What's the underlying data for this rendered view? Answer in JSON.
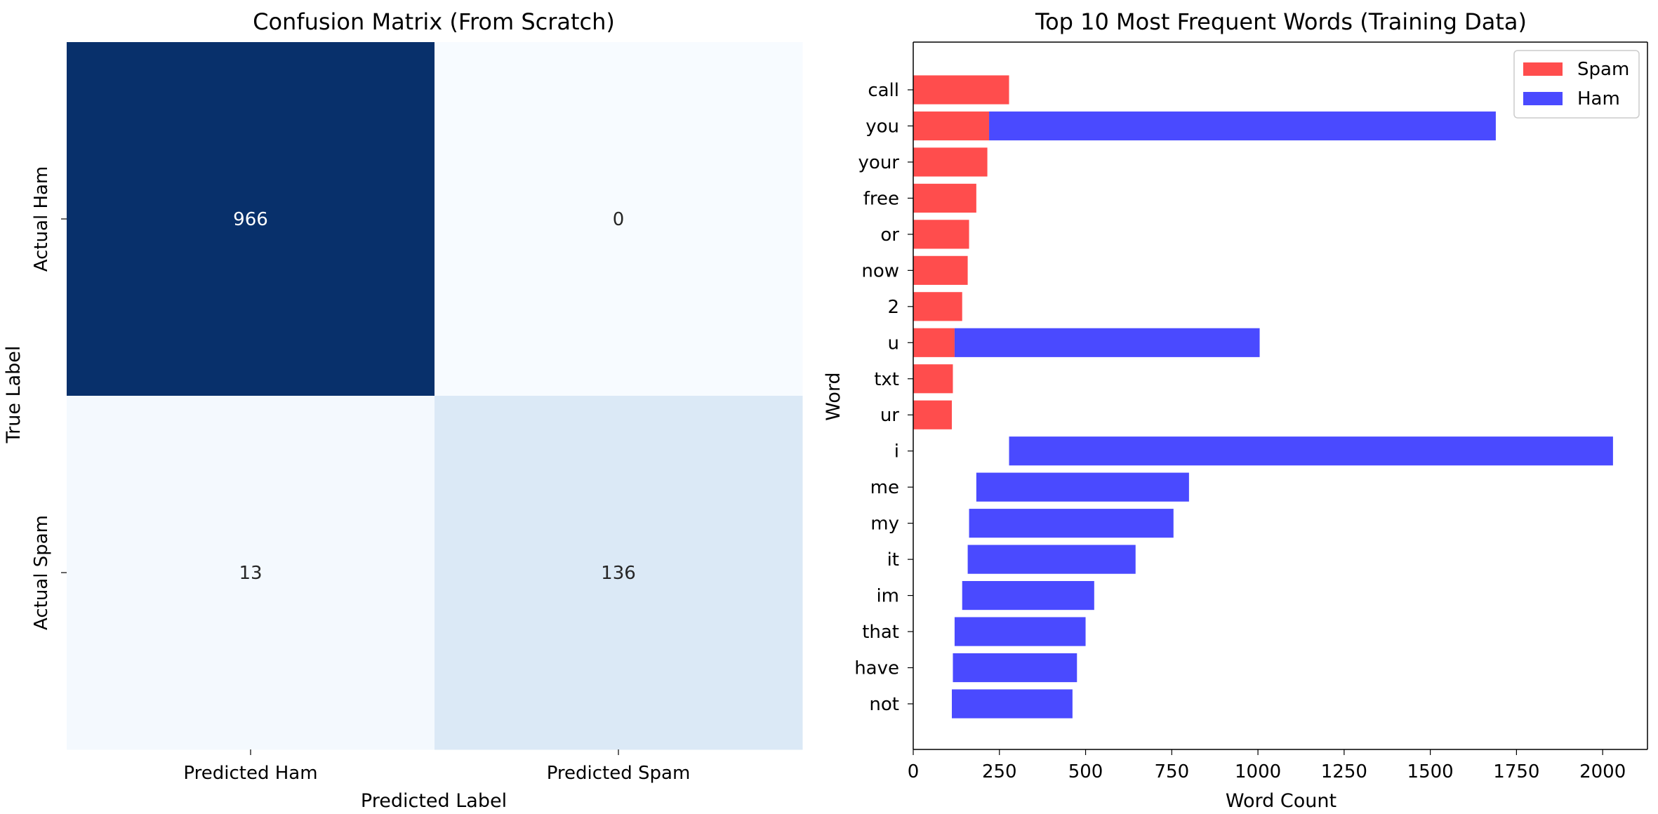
{
  "chart_data": [
    {
      "type": "heatmap",
      "title": "Confusion Matrix (From Scratch)",
      "xlabel": "Predicted Label",
      "ylabel": "True Label",
      "x_categories": [
        "Predicted Ham",
        "Predicted Spam"
      ],
      "y_categories": [
        "Actual Ham",
        "Actual Spam"
      ],
      "values": [
        [
          966,
          0
        ],
        [
          13,
          136
        ]
      ],
      "colormap": "Blues",
      "colorbar": false
    },
    {
      "type": "bar",
      "orientation": "horizontal",
      "title": "Top 10 Most Frequent Words (Training Data)",
      "xlabel": "Word Count",
      "ylabel": "Word",
      "categories": [
        "call",
        "you",
        "your",
        "free",
        "or",
        "now",
        "2",
        "u",
        "txt",
        "ur",
        "i",
        "me",
        "my",
        "it",
        "im",
        "that",
        "have",
        "not"
      ],
      "xlim": [
        0,
        2130
      ],
      "xticks": [
        0,
        250,
        500,
        750,
        1000,
        1250,
        1500,
        1750,
        2000
      ],
      "legend_position": "top-right",
      "grid": false,
      "series": [
        {
          "name": "Spam",
          "color": "#ff4d4d",
          "values": [
            278,
            220,
            215,
            183,
            162,
            158,
            142,
            120,
            115,
            112,
            null,
            null,
            null,
            null,
            null,
            null,
            null,
            null
          ]
        },
        {
          "name": "Ham",
          "color": "#4a4aff",
          "values": [
            null,
            1690,
            null,
            null,
            null,
            null,
            null,
            1005,
            null,
            null,
            2030,
            800,
            755,
            645,
            525,
            500,
            475,
            462
          ]
        }
      ]
    }
  ]
}
